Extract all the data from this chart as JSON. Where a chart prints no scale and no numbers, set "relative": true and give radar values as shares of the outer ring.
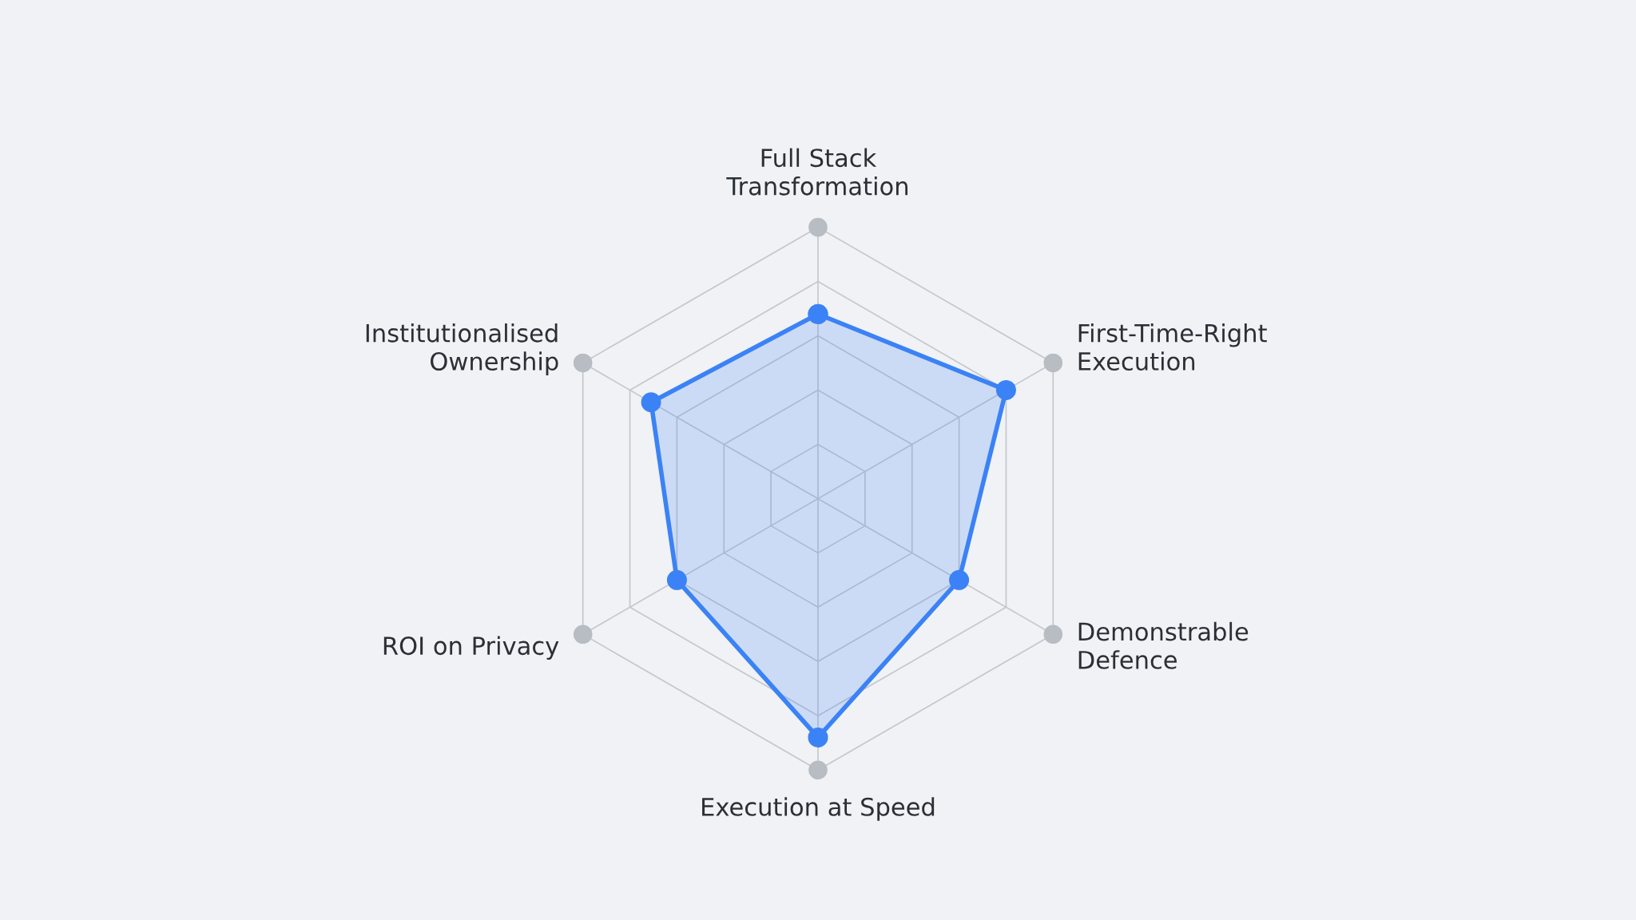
{
  "chart_data": {
    "type": "radar",
    "relative": true,
    "grid": true,
    "marker": "circle",
    "line_style": "solid",
    "categories": [
      "Full Stack\nTransformation",
      "First-Time-Right\nExecution",
      "Demonstrable\nDefence",
      "Execution at Speed",
      "ROI on Privacy",
      "Institutionalised\nOwnership"
    ],
    "series": [
      {
        "color": "#3b82f6",
        "values": [
          0.68,
          0.8,
          0.6,
          0.88,
          0.6,
          0.71
        ]
      }
    ]
  }
}
